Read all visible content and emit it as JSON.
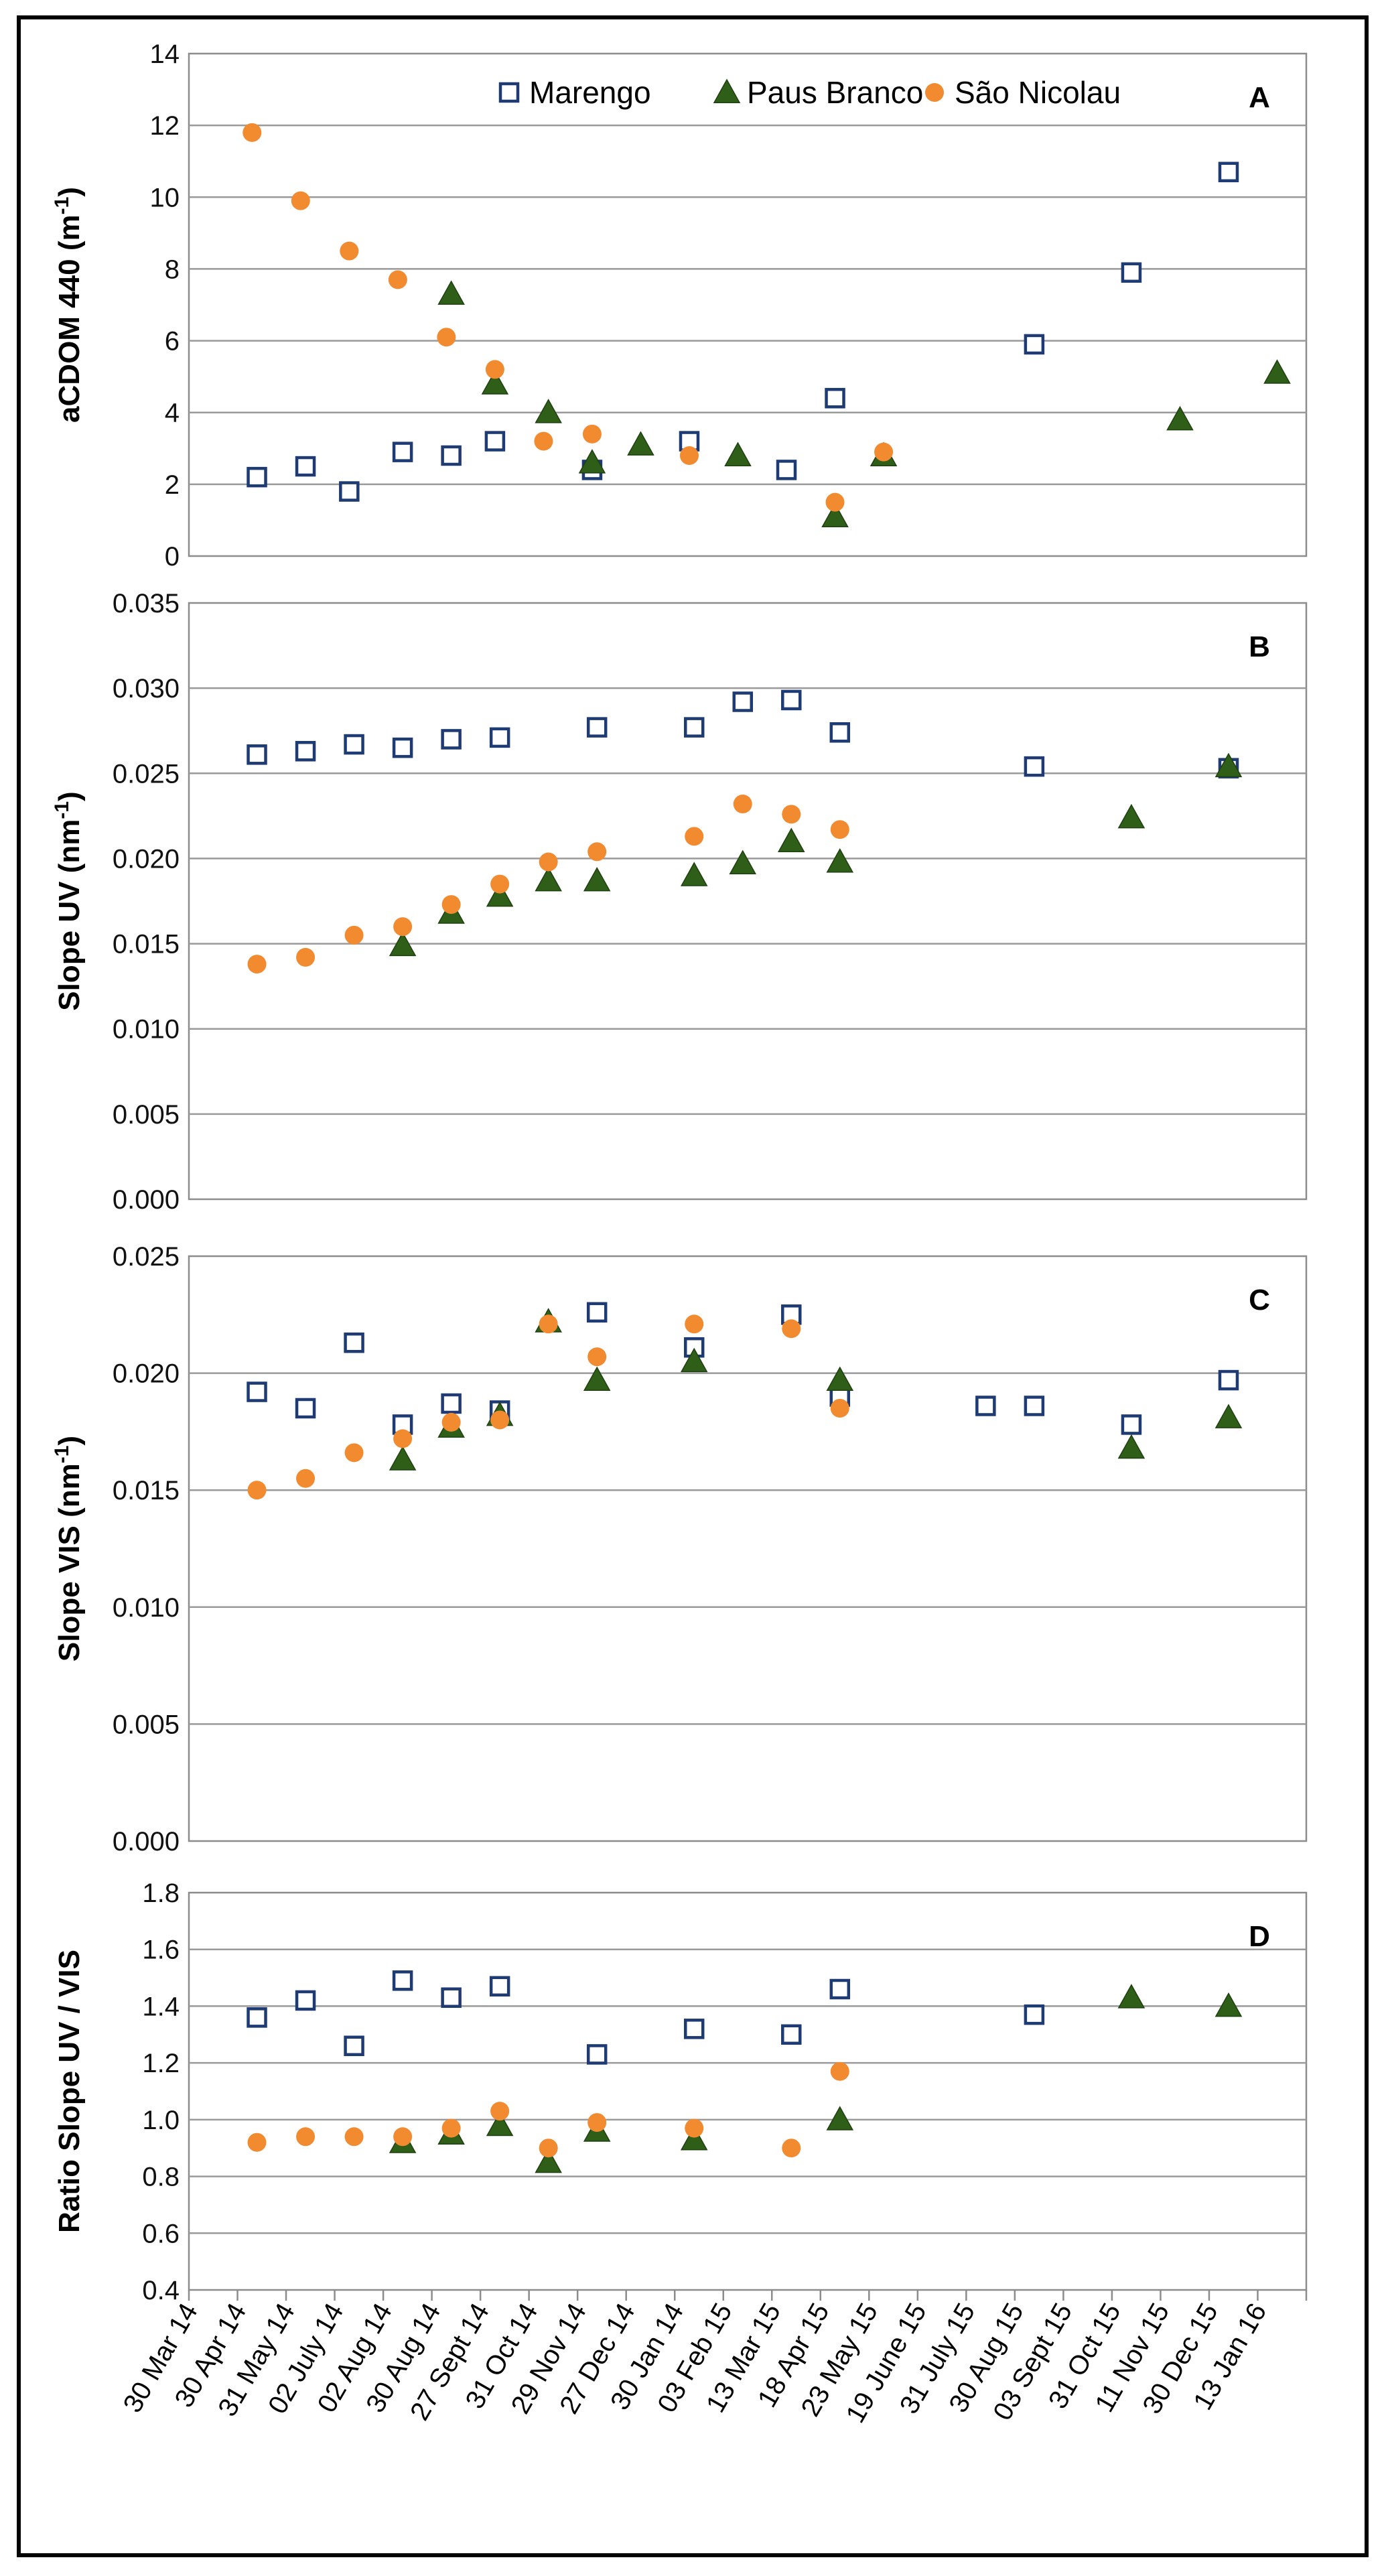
{
  "chart_data": {
    "type": "scatter",
    "figure": "CDOM optical properties over time at three sites",
    "legend": {
      "placement": "top",
      "entries": [
        {
          "name": "Marengo",
          "marker": "open-square",
          "color": "#1f3b73"
        },
        {
          "name": "Paus Branco",
          "marker": "filled-triangle",
          "color": "#2e5e18"
        },
        {
          "name": "São Nicolau",
          "marker": "filled-circle",
          "color": "#f28a30"
        }
      ]
    },
    "x_tick_labels": [
      "30 Mar 14",
      "30 Apr 14",
      "31 May 14",
      "02 July 14",
      "02 Aug 14",
      "30 Aug 14",
      "27 Sept 14",
      "31 Oct 14",
      "29 Nov 14",
      "27 Dec 14",
      "30 Jan 14",
      "03 Feb 15",
      "13 Mar 15",
      "18 Apr 15",
      "23 May 15",
      "19 June 15",
      "31 July 15",
      "30 Aug 15",
      "03 Sept 15",
      "31 Oct 15",
      "11 Nov 15",
      "30 Dec 15",
      "13 Jan 16"
    ],
    "x_note": "x values are positions on the evenly spaced category axis (0 = first tick label)",
    "panels": [
      {
        "label": "A",
        "ylabel": "aCDOM 440 (m",
        "ylabel_sup": "-1",
        "ylabel_end": ")",
        "ylim": [
          0,
          14
        ],
        "yticks": [
          "0",
          "2",
          "4",
          "6",
          "8",
          "10",
          "12",
          "14"
        ],
        "grid": true,
        "show_legend": true,
        "series": [
          {
            "name": "Marengo",
            "x": [
              1.4,
              2.4,
              3.3,
              4.4,
              5.4,
              6.3,
              8.3,
              10.3,
              12.3,
              13.3,
              17.4,
              19.4,
              21.4
            ],
            "y": [
              2.2,
              2.5,
              1.8,
              2.9,
              2.8,
              3.2,
              2.4,
              3.2,
              2.4,
              4.4,
              5.9,
              7.9,
              10.7
            ]
          },
          {
            "name": "Paus Branco",
            "x": [
              5.4,
              6.3,
              7.4,
              8.3,
              9.3,
              11.3,
              13.3,
              14.3,
              20.4,
              22.4
            ],
            "y": [
              7.3,
              4.8,
              4.0,
              2.6,
              3.1,
              2.8,
              1.1,
              2.8,
              3.8,
              5.1
            ]
          },
          {
            "name": "São Nicolau",
            "x": [
              1.3,
              2.3,
              3.3,
              4.3,
              5.3,
              6.3,
              7.3,
              8.3,
              10.3,
              13.3,
              14.3
            ],
            "y": [
              11.8,
              9.9,
              8.5,
              7.7,
              6.1,
              5.2,
              3.2,
              3.4,
              2.8,
              1.5,
              2.9
            ]
          }
        ]
      },
      {
        "label": "B",
        "ylabel": "Slope UV (nm",
        "ylabel_sup": "-1",
        "ylabel_end": ")",
        "ylim": [
          0,
          0.035
        ],
        "yticks": [
          "0.000",
          "0.005",
          "0.010",
          "0.015",
          "0.020",
          "0.025",
          "0.030",
          "0.035"
        ],
        "grid": true,
        "show_legend": false,
        "series": [
          {
            "name": "Marengo",
            "x": [
              1.4,
              2.4,
              3.4,
              4.4,
              5.4,
              6.4,
              8.4,
              10.4,
              11.4,
              12.4,
              13.4,
              17.4,
              21.4
            ],
            "y": [
              0.0261,
              0.0263,
              0.0267,
              0.0265,
              0.027,
              0.0271,
              0.0277,
              0.0277,
              0.0292,
              0.0293,
              0.0274,
              0.0254,
              0.0253
            ]
          },
          {
            "name": "Paus Branco",
            "x": [
              4.4,
              5.4,
              6.4,
              7.4,
              8.4,
              10.4,
              11.4,
              12.4,
              13.4,
              19.4,
              21.4
            ],
            "y": [
              0.0149,
              0.0168,
              0.0178,
              0.0187,
              0.0187,
              0.019,
              0.0197,
              0.021,
              0.0198,
              0.0224,
              0.0254
            ]
          },
          {
            "name": "São Nicolau",
            "x": [
              1.4,
              2.4,
              3.4,
              4.4,
              5.4,
              6.4,
              7.4,
              8.4,
              10.4,
              11.4,
              12.4,
              13.4
            ],
            "y": [
              0.0138,
              0.0142,
              0.0155,
              0.016,
              0.0173,
              0.0185,
              0.0198,
              0.0204,
              0.0213,
              0.0232,
              0.0226,
              0.0217
            ]
          }
        ]
      },
      {
        "label": "C",
        "ylabel": "Slope VIS (nm",
        "ylabel_sup": "-1",
        "ylabel_end": ")",
        "ylim": [
          0,
          0.025
        ],
        "yticks": [
          "0.000",
          "0.005",
          "0.010",
          "0.015",
          "0.020",
          "0.025"
        ],
        "grid": true,
        "show_legend": false,
        "series": [
          {
            "name": "Marengo",
            "x": [
              1.4,
              2.4,
              3.4,
              4.4,
              5.4,
              6.4,
              8.4,
              10.4,
              12.4,
              13.4,
              16.4,
              17.4,
              19.4,
              21.4
            ],
            "y": [
              0.0192,
              0.0185,
              0.0213,
              0.0178,
              0.0187,
              0.0184,
              0.0226,
              0.0211,
              0.0225,
              0.019,
              0.0186,
              0.0186,
              0.0178,
              0.0197
            ]
          },
          {
            "name": "Paus Branco",
            "x": [
              4.4,
              5.4,
              6.4,
              7.4,
              8.4,
              10.4,
              13.4,
              19.4,
              21.4
            ],
            "y": [
              0.0163,
              0.0177,
              0.0182,
              0.0222,
              0.0197,
              0.0205,
              0.0197,
              0.0168,
              0.0181
            ]
          },
          {
            "name": "São Nicolau",
            "x": [
              1.4,
              2.4,
              3.4,
              4.4,
              5.4,
              6.4,
              7.4,
              8.4,
              10.4,
              12.4,
              13.4
            ],
            "y": [
              0.015,
              0.0155,
              0.0166,
              0.0172,
              0.0179,
              0.018,
              0.0221,
              0.0207,
              0.0221,
              0.0219,
              0.0185
            ]
          }
        ]
      },
      {
        "label": "D",
        "ylabel": "Ratio Slope UV / VIS",
        "ylabel_sup": "",
        "ylabel_end": "",
        "ylim": [
          0.4,
          1.8
        ],
        "yticks": [
          "0.4",
          "0.6",
          "0.8",
          "1.0",
          "1.2",
          "1.4",
          "1.6",
          "1.8"
        ],
        "grid": true,
        "show_legend": false,
        "series": [
          {
            "name": "Marengo",
            "x": [
              1.4,
              2.4,
              3.4,
              4.4,
              5.4,
              6.4,
              8.4,
              10.4,
              12.4,
              13.4,
              17.4
            ],
            "y": [
              1.36,
              1.42,
              1.26,
              1.49,
              1.43,
              1.47,
              1.23,
              1.32,
              1.3,
              1.46,
              1.37
            ]
          },
          {
            "name": "Paus Branco",
            "x": [
              4.4,
              5.4,
              6.4,
              7.4,
              8.4,
              10.4,
              13.4,
              19.4,
              21.4
            ],
            "y": [
              0.92,
              0.95,
              0.98,
              0.85,
              0.96,
              0.93,
              1.0,
              1.43,
              1.4
            ]
          },
          {
            "name": "São Nicolau",
            "x": [
              1.4,
              2.4,
              3.4,
              4.4,
              5.4,
              6.4,
              7.4,
              8.4,
              10.4,
              12.4,
              13.4
            ],
            "y": [
              0.92,
              0.94,
              0.94,
              0.94,
              0.97,
              1.03,
              0.9,
              0.99,
              0.97,
              0.9,
              1.17
            ]
          }
        ]
      }
    ]
  }
}
